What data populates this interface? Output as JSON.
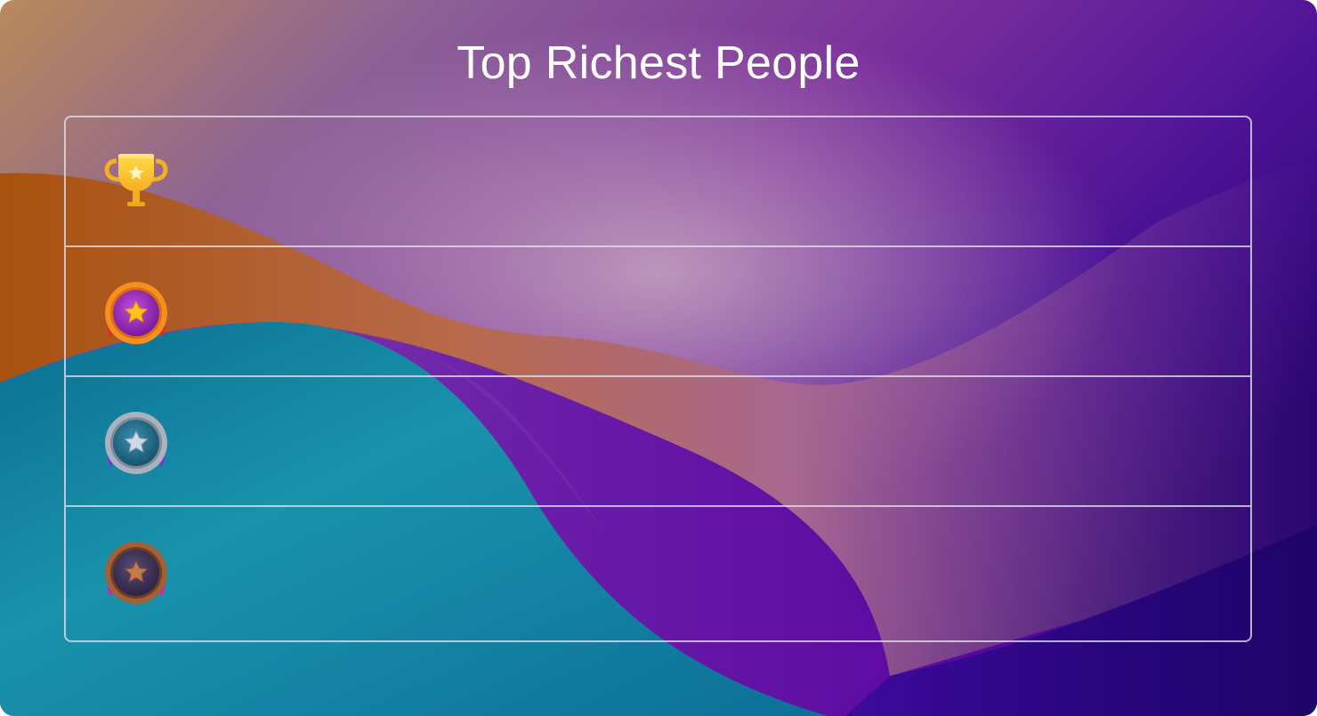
{
  "page": {
    "title": "Top Richest People"
  },
  "leaderboard": {
    "rows": [
      {
        "rank": 1,
        "icon": "trophy-icon",
        "name": ""
      },
      {
        "rank": 2,
        "icon": "gold-medal-icon",
        "name": ""
      },
      {
        "rank": 3,
        "icon": "silver-medal-icon",
        "name": ""
      },
      {
        "rank": 4,
        "icon": "bronze-medal-icon",
        "name": ""
      }
    ]
  },
  "colors": {
    "title_text": "#ffffff",
    "board_border": "#e1e1eb",
    "background_purple": "#5a0fa0",
    "background_teal": "#1a8fa8",
    "background_orange": "#b45a14"
  }
}
